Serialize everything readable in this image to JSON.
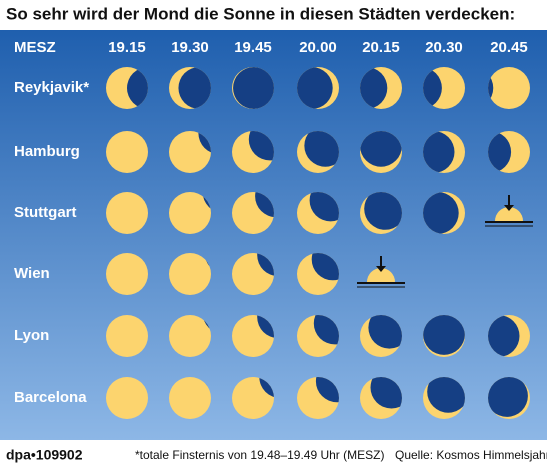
{
  "title": "So sehr wird der Mond die Sonne in diesen Städten verdecken:",
  "header": {
    "label": "MESZ",
    "times": [
      "19.15",
      "19.30",
      "19.45",
      "20.00",
      "20.15",
      "20.30",
      "20.45"
    ]
  },
  "rows": [
    "Reykjavik*",
    "Hamburg",
    "Stuttgart",
    "Wien",
    "Lyon",
    "Barcelona"
  ],
  "footer": {
    "agency": "dpa•109902",
    "note": "*totale Finsternis von 19.48–19.49 Uhr (MESZ)",
    "source": "Quelle: Kosmos Himmelsjahr"
  }
}
